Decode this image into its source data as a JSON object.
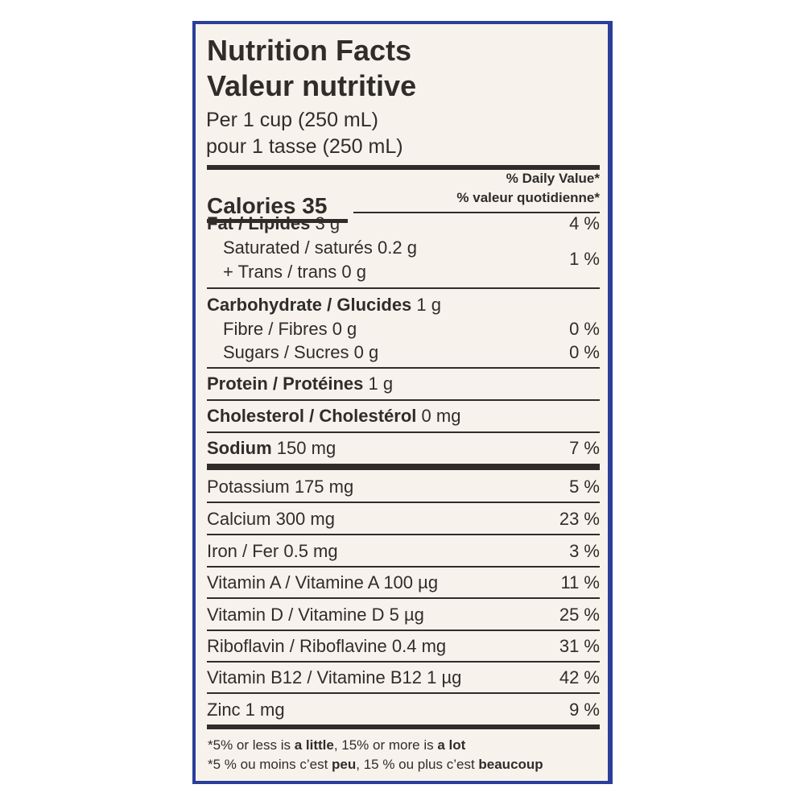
{
  "header": {
    "title_en": "Nutrition Facts",
    "title_fr": "Valeur nutritive",
    "serving_en": "Per 1 cup (250 mL)",
    "serving_fr": "pour 1 tasse (250 mL)"
  },
  "calories": {
    "label": "Calories 35",
    "dv_en": "% Daily Value*",
    "dv_fr": "% valeur quotidienne*"
  },
  "nutrients": {
    "fat": {
      "label": "Fat / Lipides",
      "amount": "3 g",
      "dv": "4 %"
    },
    "saturated": {
      "label": "Saturated / saturés 0.2 g"
    },
    "trans": {
      "label": "+ Trans / trans 0 g"
    },
    "sat_trans_dv": "1 %",
    "carbohydrate": {
      "label": "Carbohydrate / Glucides",
      "amount": "1 g"
    },
    "fibre": {
      "label": "Fibre / Fibres 0 g",
      "dv": "0 %"
    },
    "sugars": {
      "label": "Sugars / Sucres 0 g",
      "dv": "0 %"
    },
    "protein": {
      "label": "Protein / Protéines",
      "amount": "1 g"
    },
    "cholesterol": {
      "label": "Cholesterol / Cholestérol",
      "amount": "0 mg"
    },
    "sodium": {
      "label": "Sodium",
      "amount": "150 mg",
      "dv": "7 %"
    }
  },
  "micros": [
    {
      "label": "Potassium 175 mg",
      "dv": "5 %"
    },
    {
      "label": "Calcium 300 mg",
      "dv": "23 %"
    },
    {
      "label": "Iron / Fer 0.5 mg",
      "dv": "3 %"
    },
    {
      "label": "Vitamin A / Vitamine A 100 µg",
      "dv": "11 %"
    },
    {
      "label": "Vitamin D / Vitamine D 5 µg",
      "dv": "25 %"
    },
    {
      "label": "Riboflavin / Riboflavine 0.4 mg",
      "dv": "31 %"
    },
    {
      "label": "Vitamin B12 / Vitamine B12 1 µg",
      "dv": "42 %"
    },
    {
      "label": "Zinc 1 mg",
      "dv": "9 %"
    }
  ],
  "footnote": {
    "en_1": "*5% or less is ",
    "en_2": "a little",
    "en_3": ", 15% or more is ",
    "en_4": "a lot",
    "fr_1": "*5 % ou moins c’est ",
    "fr_2": "peu",
    "fr_3": ", 15 % ou plus c’est ",
    "fr_4": "beaucoup"
  },
  "colors": {
    "border": "#2a3f9a",
    "background": "#f7f3ec",
    "text": "#302c2a"
  }
}
